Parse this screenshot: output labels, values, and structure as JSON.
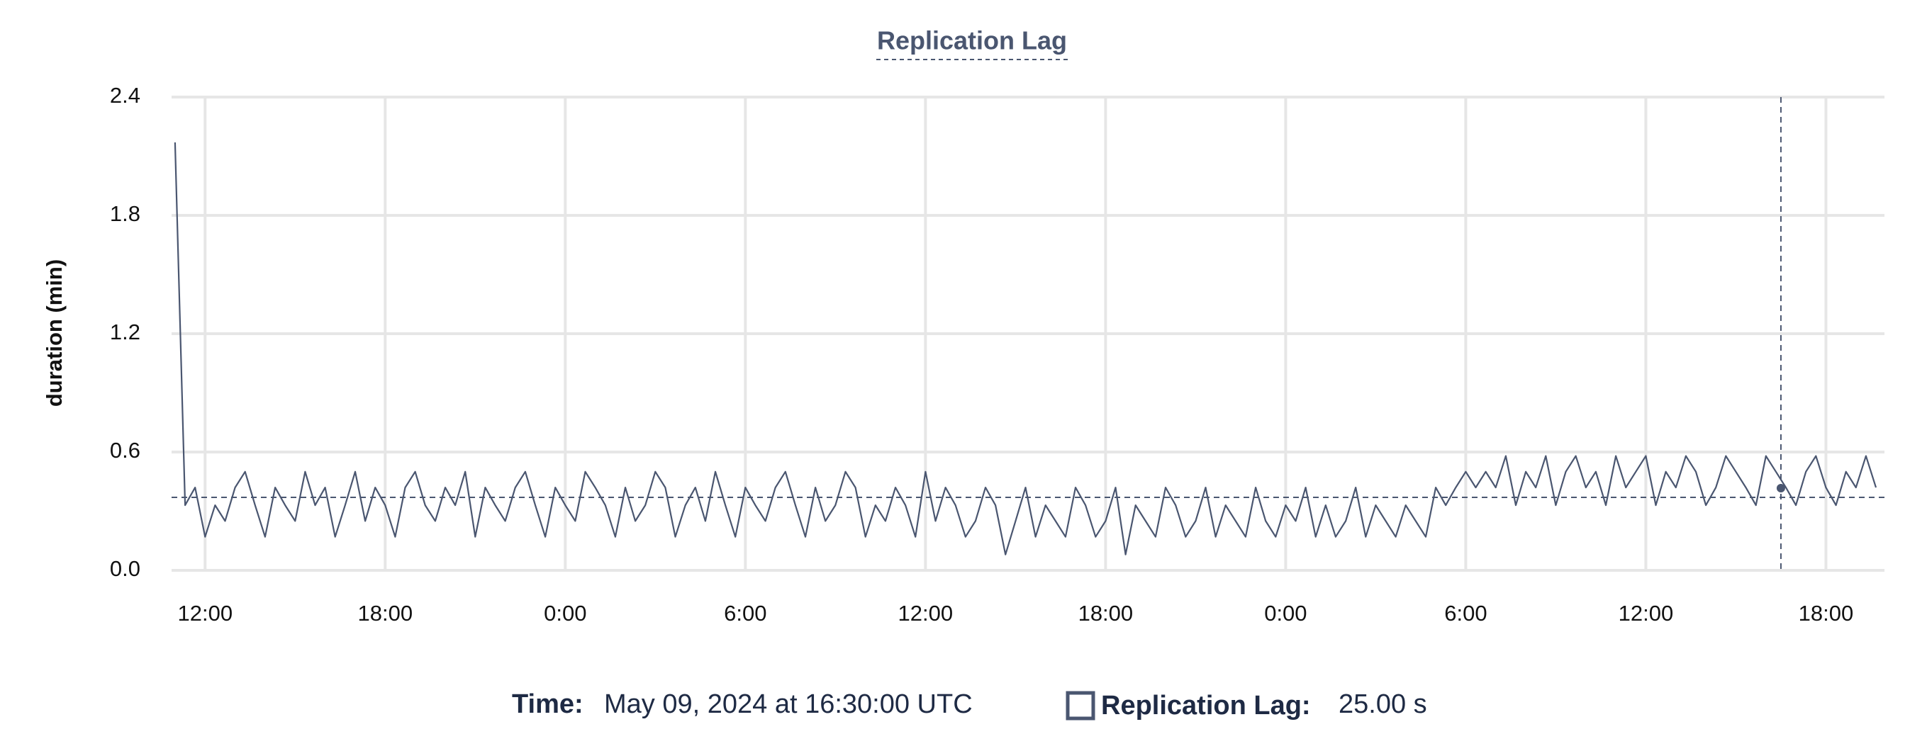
{
  "chart_data": {
    "type": "line",
    "title": "Replication Lag",
    "y_label": "duration (min)",
    "x": [
      660,
      680,
      700,
      720,
      740,
      760,
      780,
      800,
      820,
      840,
      860,
      880,
      900,
      920,
      940,
      960,
      980,
      1000,
      1020,
      1040,
      1060,
      1080,
      1100,
      1120,
      1140,
      1160,
      1180,
      1200,
      1220,
      1240,
      1260,
      1280,
      1300,
      1320,
      1340,
      1360,
      1380,
      1400,
      1420,
      1440,
      1460,
      1480,
      1500,
      1520,
      1540,
      1560,
      1580,
      1600,
      1620,
      1640,
      1660,
      1680,
      1700,
      1720,
      1740,
      1760,
      1780,
      1800,
      1820,
      1840,
      1860,
      1880,
      1900,
      1920,
      1940,
      1960,
      1980,
      2000,
      2020,
      2040,
      2060,
      2080,
      2100,
      2120,
      2140,
      2160,
      2180,
      2200,
      2220,
      2240,
      2260,
      2280,
      2300,
      2320,
      2340,
      2360,
      2380,
      2400,
      2420,
      2440,
      2460,
      2480,
      2500,
      2520,
      2540,
      2560,
      2580,
      2600,
      2620,
      2640,
      2660,
      2680,
      2700,
      2720,
      2740,
      2760,
      2780,
      2800,
      2820,
      2840,
      2860,
      2880,
      2900,
      2920,
      2940,
      2960,
      2980,
      3000,
      3020,
      3040,
      3060,
      3080,
      3100,
      3120,
      3140,
      3160,
      3180,
      3200,
      3220,
      3240,
      3260,
      3280,
      3300,
      3320,
      3340,
      3360,
      3380,
      3400,
      3420,
      3440,
      3460,
      3480,
      3500,
      3520,
      3540,
      3560,
      3580,
      3600,
      3620,
      3640,
      3660,
      3680,
      3700,
      3720,
      3740,
      3760,
      3780,
      3800,
      3820,
      3840,
      3860,
      3880,
      3900,
      3920,
      3940,
      3960,
      3980,
      4000,
      4020,
      4040,
      4060
    ],
    "series": [
      {
        "name": "Replication Lag",
        "color": "#4a5670",
        "values": [
          2.17,
          0.33,
          0.42,
          0.17,
          0.33,
          0.25,
          0.42,
          0.5,
          0.33,
          0.17,
          0.42,
          0.33,
          0.25,
          0.5,
          0.33,
          0.42,
          0.17,
          0.33,
          0.5,
          0.25,
          0.42,
          0.33,
          0.17,
          0.42,
          0.5,
          0.33,
          0.25,
          0.42,
          0.33,
          0.5,
          0.17,
          0.42,
          0.33,
          0.25,
          0.42,
          0.5,
          0.33,
          0.17,
          0.42,
          0.33,
          0.25,
          0.5,
          0.42,
          0.33,
          0.17,
          0.42,
          0.25,
          0.33,
          0.5,
          0.42,
          0.17,
          0.33,
          0.42,
          0.25,
          0.5,
          0.33,
          0.17,
          0.42,
          0.33,
          0.25,
          0.42,
          0.5,
          0.33,
          0.17,
          0.42,
          0.25,
          0.33,
          0.5,
          0.42,
          0.17,
          0.33,
          0.25,
          0.42,
          0.33,
          0.17,
          0.5,
          0.25,
          0.42,
          0.33,
          0.17,
          0.25,
          0.42,
          0.33,
          0.08,
          0.25,
          0.42,
          0.17,
          0.33,
          0.25,
          0.17,
          0.42,
          0.33,
          0.17,
          0.25,
          0.42,
          0.08,
          0.33,
          0.25,
          0.17,
          0.42,
          0.33,
          0.17,
          0.25,
          0.42,
          0.17,
          0.33,
          0.25,
          0.17,
          0.42,
          0.25,
          0.17,
          0.33,
          0.25,
          0.42,
          0.17,
          0.33,
          0.17,
          0.25,
          0.42,
          0.17,
          0.33,
          0.25,
          0.17,
          0.33,
          0.25,
          0.17,
          0.42,
          0.33,
          0.42,
          0.5,
          0.42,
          0.5,
          0.42,
          0.58,
          0.33,
          0.5,
          0.42,
          0.58,
          0.33,
          0.5,
          0.58,
          0.42,
          0.5,
          0.33,
          0.58,
          0.42,
          0.5,
          0.58,
          0.33,
          0.5,
          0.42,
          0.58,
          0.5,
          0.33,
          0.42,
          0.58,
          0.5,
          0.42,
          0.33,
          0.58,
          0.5,
          0.42,
          0.33,
          0.5,
          0.58,
          0.42,
          0.33,
          0.5,
          0.42,
          0.58,
          0.42
        ]
      }
    ],
    "reference_line": 0.37,
    "xlim": [
      653,
      4077
    ],
    "xticks": [
      {
        "value": 720,
        "label": "12:00"
      },
      {
        "value": 1080,
        "label": "18:00"
      },
      {
        "value": 1440,
        "label": "0:00"
      },
      {
        "value": 1800,
        "label": "6:00"
      },
      {
        "value": 2160,
        "label": "12:00"
      },
      {
        "value": 2520,
        "label": "18:00"
      },
      {
        "value": 2880,
        "label": "0:00"
      },
      {
        "value": 3240,
        "label": "6:00"
      },
      {
        "value": 3600,
        "label": "12:00"
      },
      {
        "value": 3960,
        "label": "18:00"
      }
    ],
    "ylim": [
      0,
      2.4
    ],
    "yticks": [
      {
        "value": 0,
        "label": "0.0"
      },
      0.6,
      1.2,
      1.8,
      2.4
    ],
    "grid": true,
    "hover": {
      "x": 3870,
      "time_label": "Time:",
      "time_text": "May 09, 2024 at 16:30:00 UTC",
      "series_label": "Replication Lag:",
      "value": 0.4167,
      "value_label": "25.00 s"
    }
  }
}
